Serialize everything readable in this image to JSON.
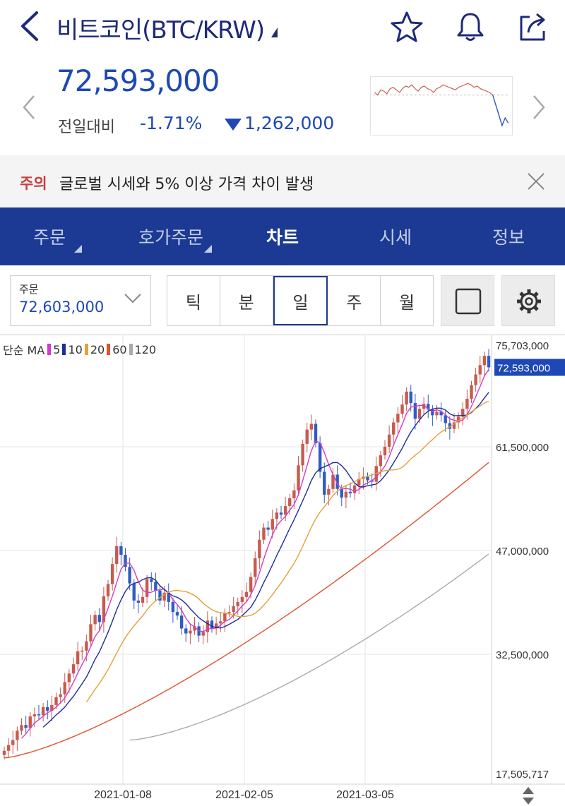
{
  "header": {
    "title": "비트코인(BTC/KRW)",
    "icons": [
      "back-icon",
      "star-icon",
      "bell-icon",
      "share-icon"
    ]
  },
  "price": {
    "current": "72,593,000",
    "change_label": "전일대비",
    "change_rate": "-1.71%",
    "change_abs": "1,262,000"
  },
  "notice": {
    "tag": "주의",
    "text": "글로벌 시세와 5% 이상 가격 차이 발생"
  },
  "tabs": [
    {
      "label": "주문",
      "dropdown": true
    },
    {
      "label": "호가주문",
      "dropdown": true
    },
    {
      "label": "차트",
      "active": true
    },
    {
      "label": "시세"
    },
    {
      "label": "정보"
    }
  ],
  "controls": {
    "order_label": "주문",
    "order_value": "72,603,000",
    "periods": [
      "틱",
      "분",
      "일",
      "주",
      "월"
    ],
    "active_period": "일"
  },
  "legend": {
    "title": "단순 MA",
    "items": [
      {
        "label": "5",
        "color": "#d23bc8"
      },
      {
        "label": "10",
        "color": "#1c2d9c"
      },
      {
        "label": "20",
        "color": "#e0a23a"
      },
      {
        "label": "60",
        "color": "#e0512e"
      },
      {
        "label": "120",
        "color": "#aaaaaa"
      }
    ]
  },
  "colors": {
    "up": "#c85a4e",
    "down": "#2f5cc4",
    "brand": "#1c3994",
    "price": "#1e48b5"
  },
  "chart_data": {
    "type": "candlestick",
    "y_axis_labels": [
      "75,703,000",
      "61,500,000",
      "47,000,000",
      "32,500,000",
      "17,505,717"
    ],
    "current_price_label": "72,593,000",
    "ylim": [
      17505717,
      75703000
    ],
    "x_tick_labels": [
      "2021-01-08",
      "2021-02-05",
      "2021-03-05"
    ],
    "closes": [
      19.0,
      19.8,
      20.5,
      21.8,
      22.6,
      22.2,
      23.8,
      24.1,
      24.0,
      25.1,
      24.6,
      25.4,
      26.5,
      26.9,
      28.6,
      29.8,
      31.1,
      32.9,
      33.0,
      34.3,
      36.7,
      38.0,
      37.0,
      40.6,
      42.3,
      45.1,
      47.6,
      46.4,
      44.7,
      42.4,
      40.0,
      39.7,
      40.5,
      43.0,
      42.6,
      41.4,
      40.0,
      41.1,
      39.8,
      38.4,
      37.9,
      36.1,
      35.4,
      35.8,
      36.4,
      35.1,
      35.6,
      37.2,
      36.1,
      36.8,
      37.1,
      38.3,
      38.4,
      39.2,
      39.8,
      40.5,
      41.2,
      43.3,
      45.9,
      48.5,
      50.2,
      49.9,
      51.4,
      52.3,
      52.0,
      53.2,
      54.3,
      55.4,
      58.9,
      61.9,
      63.9,
      64.7,
      62.0,
      58.0,
      54.8,
      55.6,
      57.6,
      55.6,
      54.4,
      55.2,
      55.0,
      56.1,
      57.0,
      57.3,
      56.8,
      56.6,
      58.8,
      60.3,
      61.5,
      63.2,
      64.9,
      66.1,
      67.4,
      69.2,
      67.6,
      65.4,
      66.8,
      67.5,
      66.7,
      65.9,
      66.4,
      65.9,
      64.8,
      64.0,
      64.9,
      65.7,
      66.8,
      68.2,
      70.1,
      71.6,
      72.9,
      74.2,
      72.6
    ]
  }
}
